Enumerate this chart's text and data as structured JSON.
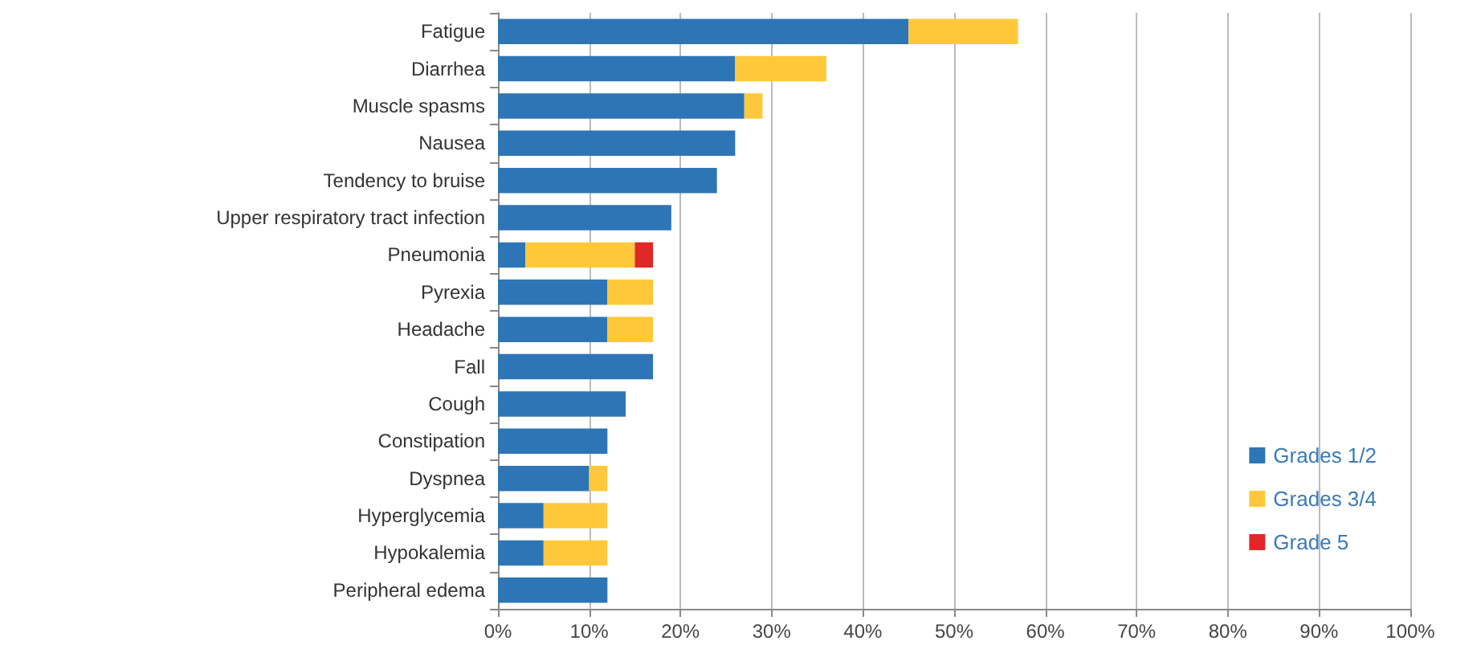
{
  "chart_data": {
    "type": "bar",
    "orientation": "horizontal",
    "stacked": true,
    "grid": "x",
    "legend": "bottom right",
    "categories": [
      "Fatigue",
      "Diarrhea",
      "Muscle spasms",
      "Nausea",
      "Tendency to bruise",
      "Upper respiratory tract infection",
      "Pneumonia",
      "Pyrexia",
      "Headache",
      "Fall",
      "Cough",
      "Constipation",
      "Dyspnea",
      "Hyperglycemia",
      "Hypokalemia",
      "Peripheral edema"
    ],
    "series": [
      {
        "name": "Grades 1/2",
        "color": "#2e75b6",
        "values": [
          45,
          26,
          27,
          26,
          24,
          19,
          3,
          12,
          12,
          17,
          14,
          12,
          10,
          5,
          5,
          12
        ]
      },
      {
        "name": "Grades 3/4",
        "color": "#ffc83a",
        "values": [
          12,
          10,
          2,
          null,
          null,
          null,
          12,
          5,
          5,
          null,
          null,
          null,
          2,
          7,
          7,
          null
        ]
      },
      {
        "name": "Grade 5",
        "color": "#e02828",
        "values": [
          null,
          null,
          null,
          null,
          null,
          null,
          2,
          null,
          null,
          null,
          null,
          null,
          null,
          null,
          null,
          null
        ]
      }
    ],
    "xlim": [
      0,
      100
    ],
    "xticks": [
      {
        "value": 0,
        "label": "0%"
      },
      {
        "value": 10,
        "label": "10%"
      },
      {
        "value": 20,
        "label": "20%"
      },
      {
        "value": 30,
        "label": "30%"
      },
      {
        "value": 40,
        "label": "40%"
      },
      {
        "value": 50,
        "label": "50%"
      },
      {
        "value": 60,
        "label": "60%"
      },
      {
        "value": 70,
        "label": "70%"
      },
      {
        "value": 80,
        "label": "80%"
      },
      {
        "value": 90,
        "label": "90%"
      },
      {
        "value": 100,
        "label": "100%"
      }
    ]
  }
}
